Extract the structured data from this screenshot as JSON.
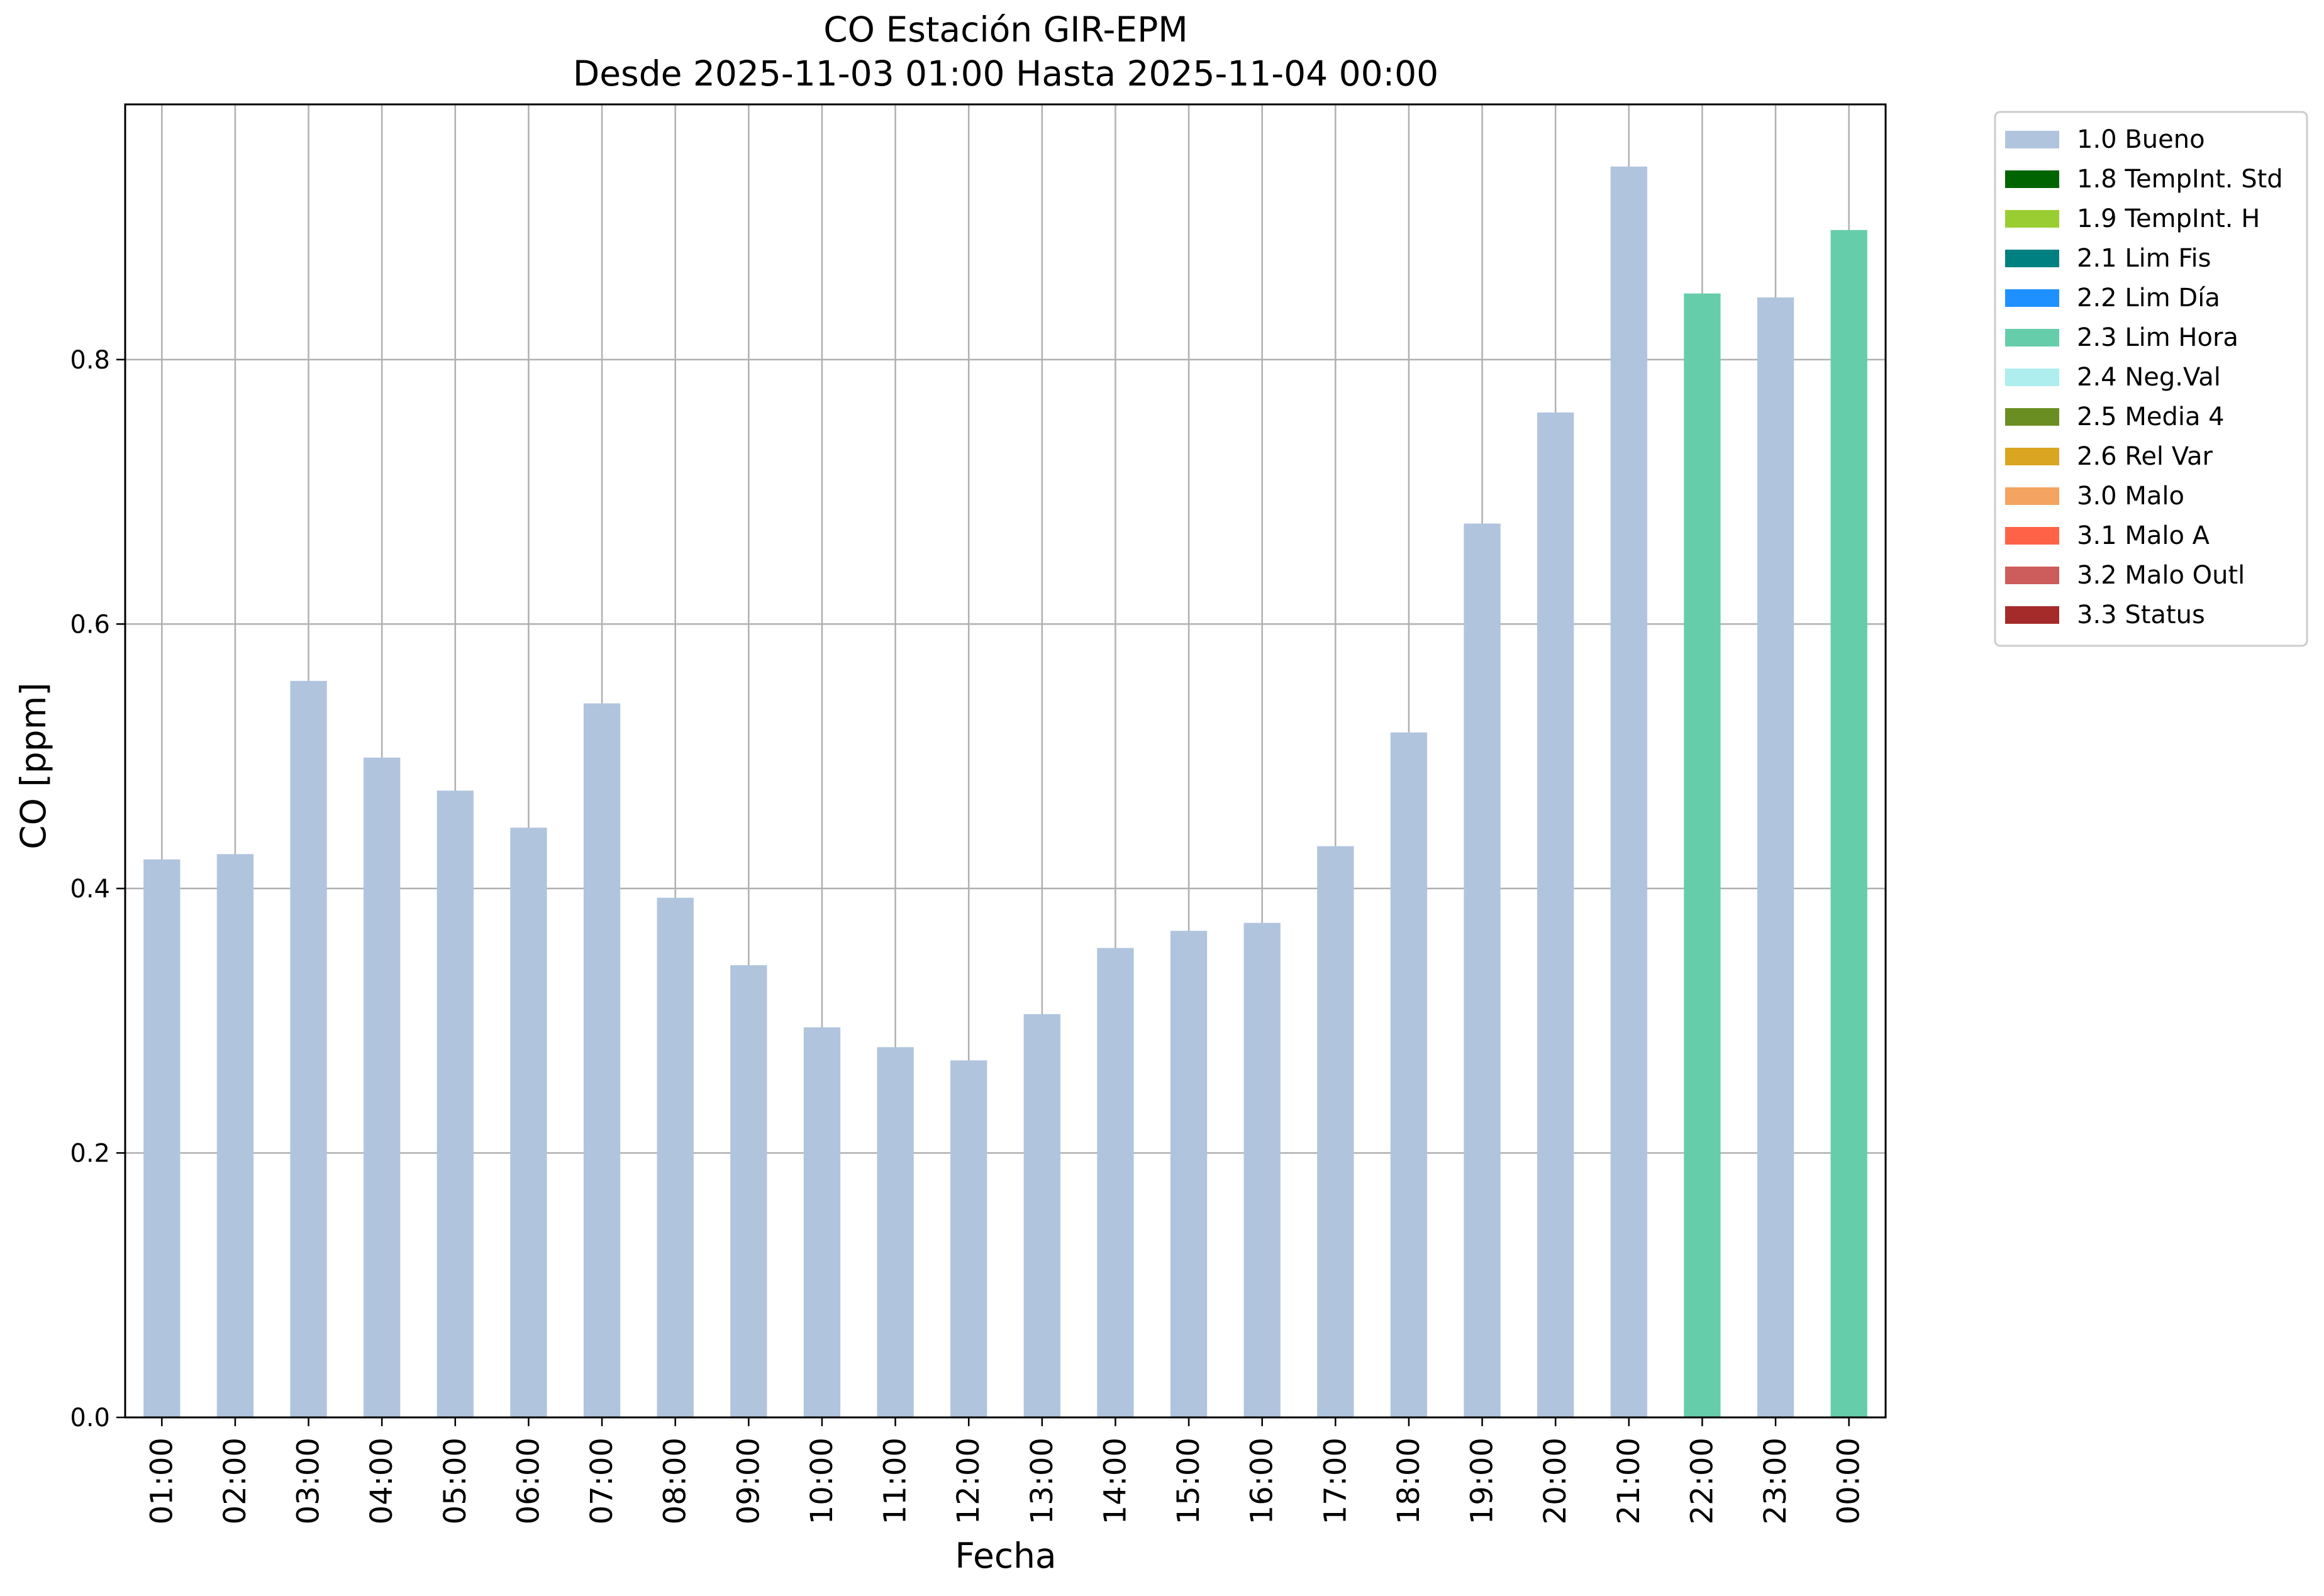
{
  "chart_data": {
    "type": "bar",
    "title": "CO Estación GIR-EPM",
    "subtitle": "Desde 2025-11-03 01:00 Hasta 2025-11-04 00:00",
    "xlabel": "Fecha",
    "ylabel": "CO [ppm]",
    "ylim": [
      0,
      0.993
    ],
    "yticks": [
      "0.0",
      "0.2",
      "0.4",
      "0.6",
      "0.8"
    ],
    "ytick_values": [
      0,
      0.2,
      0.4,
      0.6,
      0.8
    ],
    "grid": true,
    "legend_position": "outside-right",
    "categories": [
      "01:00",
      "02:00",
      "03:00",
      "04:00",
      "05:00",
      "06:00",
      "07:00",
      "08:00",
      "09:00",
      "10:00",
      "11:00",
      "12:00",
      "13:00",
      "14:00",
      "15:00",
      "16:00",
      "17:00",
      "18:00",
      "19:00",
      "20:00",
      "21:00",
      "22:00",
      "23:00",
      "00:00"
    ],
    "values": [
      0.422,
      0.426,
      0.557,
      0.499,
      0.474,
      0.446,
      0.54,
      0.393,
      0.342,
      0.295,
      0.28,
      0.27,
      0.305,
      0.355,
      0.368,
      0.374,
      0.432,
      0.518,
      0.676,
      0.76,
      0.946,
      0.85,
      0.847,
      0.898
    ],
    "flags": [
      "1.0 Bueno",
      "1.0 Bueno",
      "1.0 Bueno",
      "1.0 Bueno",
      "1.0 Bueno",
      "1.0 Bueno",
      "1.0 Bueno",
      "1.0 Bueno",
      "1.0 Bueno",
      "1.0 Bueno",
      "1.0 Bueno",
      "1.0 Bueno",
      "1.0 Bueno",
      "1.0 Bueno",
      "1.0 Bueno",
      "1.0 Bueno",
      "1.0 Bueno",
      "1.0 Bueno",
      "1.0 Bueno",
      "1.0 Bueno",
      "1.0 Bueno",
      "2.3 Lim Hora",
      "1.0 Bueno",
      "2.3 Lim Hora"
    ],
    "legend": [
      {
        "label": "1.0 Bueno",
        "color": "#b0c4de"
      },
      {
        "label": "1.8 TempInt. Std",
        "color": "#006400"
      },
      {
        "label": "1.9 TempInt. H",
        "color": "#9acd32"
      },
      {
        "label": "2.1 Lim Fis",
        "color": "#008080"
      },
      {
        "label": "2.2 Lim Día",
        "color": "#1e90ff"
      },
      {
        "label": "2.3 Lim Hora",
        "color": "#66cdaa"
      },
      {
        "label": "2.4 Neg.Val",
        "color": "#afeeee"
      },
      {
        "label": "2.5 Media 4",
        "color": "#6b8e23"
      },
      {
        "label": "2.6 Rel Var",
        "color": "#daa520"
      },
      {
        "label": "3.0 Malo",
        "color": "#f4a460"
      },
      {
        "label": "3.1 Malo A",
        "color": "#ff6347"
      },
      {
        "label": "3.2 Malo Outl",
        "color": "#cd5c5c"
      },
      {
        "label": "3.3 Status",
        "color": "#a52a2a"
      }
    ]
  }
}
